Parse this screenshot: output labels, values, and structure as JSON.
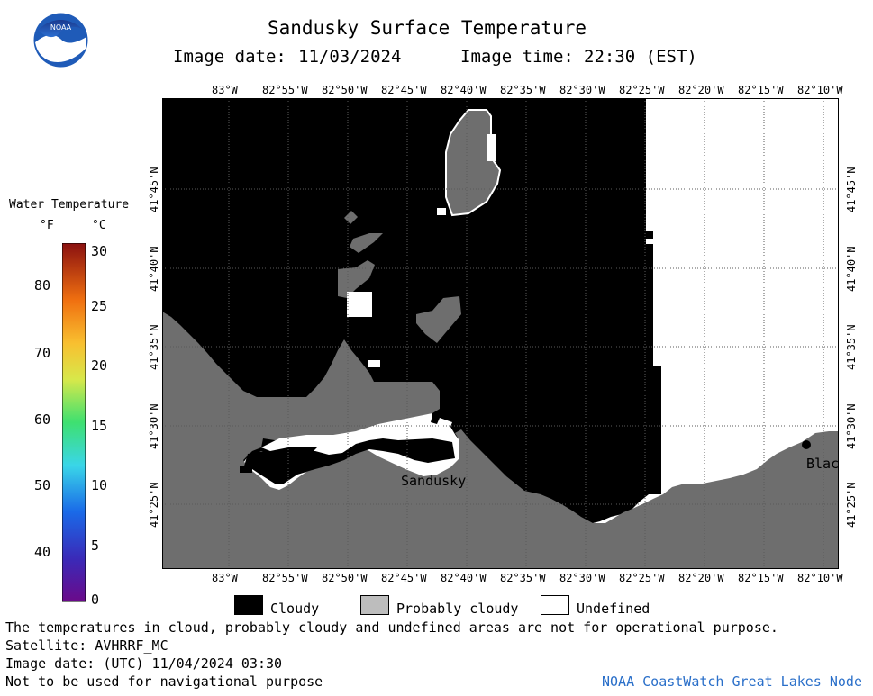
{
  "header": {
    "title": "Sandusky Surface Temperature",
    "image_date_label": "Image date:",
    "image_date": "11/03/2024",
    "image_time_label": "Image time:",
    "image_time": "22:30 (EST)"
  },
  "map": {
    "lon_labels": [
      "83°W",
      "82°55'W",
      "82°50'W",
      "82°45'W",
      "82°40'W",
      "82°35'W",
      "82°30'W",
      "82°25'W",
      "82°20'W",
      "82°15'W",
      "82°10'W"
    ],
    "lat_labels": [
      "41°45'N",
      "41°40'N",
      "41°35'N",
      "41°30'N",
      "41°25'N"
    ],
    "place_labels": {
      "sandusky": "Sandusky",
      "blac": "Blac"
    },
    "colors": {
      "cloudy": "#000000",
      "probably_cloudy": "#6e6e6e",
      "undefined": "#ffffff"
    }
  },
  "colorbar": {
    "title": "Water Temperature",
    "unit_f": "°F",
    "unit_c": "°C",
    "f_ticks": [
      "80",
      "70",
      "60",
      "50",
      "40"
    ],
    "c_ticks": [
      "30",
      "25",
      "20",
      "15",
      "10",
      "5",
      "0"
    ]
  },
  "legend": {
    "cloudy": "Cloudy",
    "probably_cloudy": "Probably cloudy",
    "undefined": "Undefined"
  },
  "footer": {
    "disclaimer": "The temperatures in cloud, probably cloudy and undefined areas are not for operational purpose.",
    "satellite": "Satellite: AVHRRF_MC",
    "utc_date": "Image date: (UTC) 11/04/2024  03:30",
    "nav_warning": "Not to be used for navigational purpose",
    "credit": "NOAA CoastWatch Great Lakes Node"
  },
  "logo": {
    "text": "NOAA"
  }
}
